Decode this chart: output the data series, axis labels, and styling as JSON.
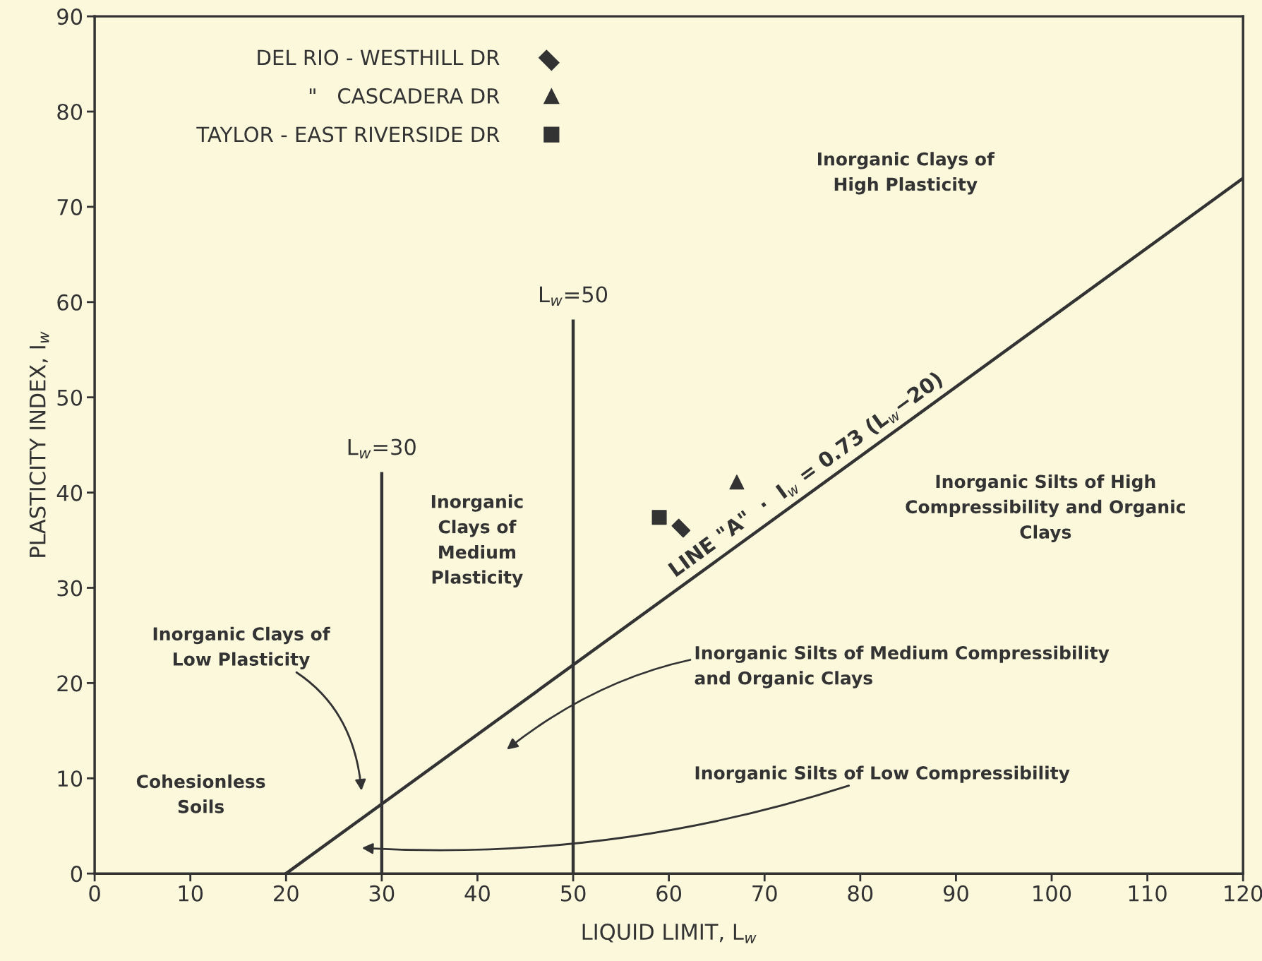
{
  "chart_data": {
    "type": "scatter",
    "xlabel": "LIQUID LIMIT, L$_{w}$",
    "ylabel": "PLASTICITY INDEX, I$_{w}$",
    "xlim": [
      0,
      120
    ],
    "ylim": [
      0,
      90
    ],
    "xticks": [
      0,
      10,
      20,
      30,
      40,
      50,
      60,
      70,
      80,
      90,
      100,
      110,
      120
    ],
    "yticks": [
      0,
      10,
      20,
      30,
      40,
      50,
      60,
      70,
      80,
      90
    ],
    "grid": false,
    "legend": "top left",
    "series": [
      {
        "name": "DEL RIO - WESTHILL DR",
        "marker": "diamond",
        "color": "#333333",
        "x": [
          61.5
        ],
        "values": [
          36.5
        ]
      },
      {
        "name": "\"   CASCADERA DR",
        "marker": "triangle",
        "color": "#333333",
        "x": [
          67.1
        ],
        "values": [
          41.1
        ]
      },
      {
        "name": "TAYLOR - EAST RIVERSIDE DR",
        "marker": "square",
        "color": "#333333",
        "x": [
          59
        ],
        "values": [
          37.4
        ]
      },
      {
        "type": "line",
        "color": "#333333",
        "x": [
          20,
          120
        ],
        "values": [
          0,
          73
        ]
      },
      {
        "type": "line",
        "color": "#333333",
        "x": [
          30,
          30
        ],
        "values": [
          0,
          42
        ]
      },
      {
        "type": "line",
        "color": "#333333",
        "x": [
          50,
          50
        ],
        "values": [
          0,
          58
        ]
      }
    ],
    "annotations": [
      "Inorganic Clays of\nHigh Plasticity",
      "Inorganic Silts of High\nCompressibility and Organic\nClays",
      "Inorganic\nClays of\nMedium\nPlasticity",
      "Cohesionless\nSoils",
      "Inorganic Clays of\nLow Plasticity",
      "Inorganic Silts of Medium Compressibility\nand Organic Clays",
      "Inorganic Silts of Low Compressibility",
      "L$_{w}$=30",
      "L$_{w}$=50",
      "LINE \"A\"  ·  I$_{w}$ = 0.73 (L$_{w}$−20)"
    ]
  }
}
